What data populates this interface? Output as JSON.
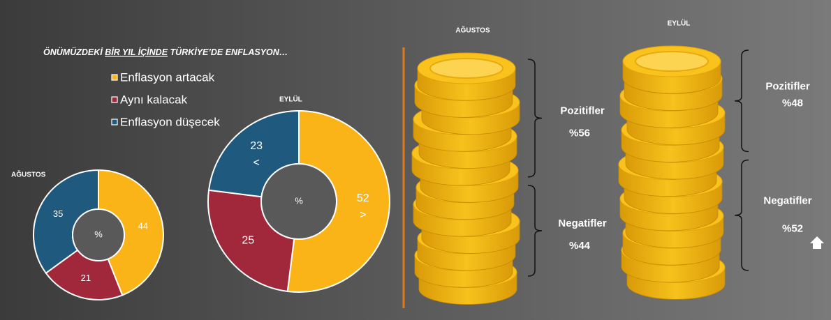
{
  "title_start": "ÖNÜMÜZDEKİ",
  "title_underlined": "BİR YIL İÇİNDE",
  "title_end": "TÜRKİYE’DE ENFLASYON…",
  "chart_data": [
    {
      "type": "pie",
      "title": "AĞUSTOS",
      "center_label": "%",
      "categories": [
        "Enflasyon artacak",
        "Aynı kalacak",
        "Enflasyon düşecek"
      ],
      "values": [
        44,
        21,
        35
      ],
      "colors": [
        "#fbb418",
        "#a1283a",
        "#1f5a7e"
      ]
    },
    {
      "type": "pie",
      "title": "EYLÜL",
      "center_label": "%",
      "categories": [
        "Enflasyon artacak",
        "Aynı kalacak",
        "Enflasyon düşecek"
      ],
      "values": [
        52,
        25,
        23
      ],
      "colors": [
        "#fbb418",
        "#a1283a",
        "#1f5a7e"
      ],
      "annotations": [
        ">",
        null,
        "<"
      ]
    }
  ],
  "coin_stacks": [
    {
      "title": "AĞUSTOS",
      "groups": [
        {
          "name": "Pozitifler",
          "value": 56,
          "value_label": "%56"
        },
        {
          "name": "Negatifler",
          "value": 44,
          "value_label": "%44"
        }
      ]
    },
    {
      "title": "EYLÜL",
      "groups": [
        {
          "name": "Pozitifler",
          "value": 48,
          "value_label": "%48"
        },
        {
          "name": "Negatifler",
          "value": 52,
          "value_label": "%52"
        }
      ]
    }
  ]
}
